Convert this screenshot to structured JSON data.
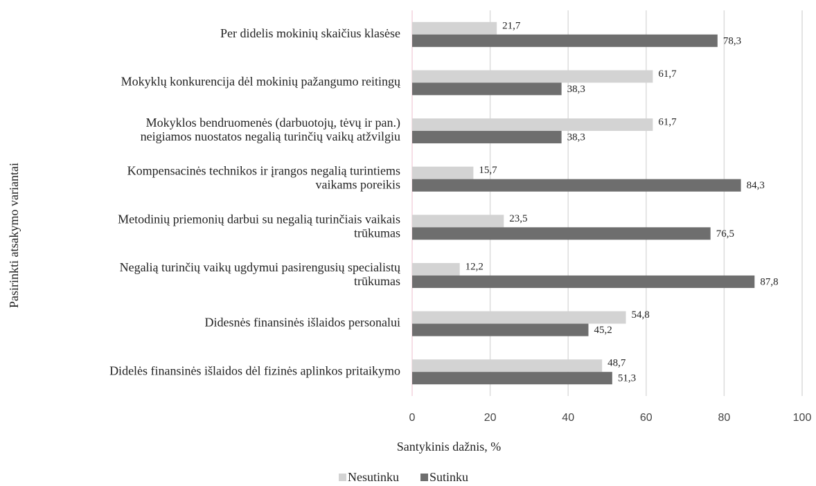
{
  "chart_data": {
    "type": "hbar",
    "xlabel": "Santykinis dažnis, %",
    "ylabel": "Pasirinkti atsakymo variantai",
    "categories": [
      "Per didelis mokinių skaičius klasėse",
      "Mokyklų konkurencija dėl mokinių pažangumo reitingų",
      "Mokyklos bendruomenės (darbuotojų, tėvų ir pan.)\nneigiamos nuostatos negalią turinčių vaikų atžvilgiu",
      "Kompensacinės technikos ir įrangos negalią turintiems\nvaikams poreikis",
      "Metodinių priemonių darbui su negalią turinčiais vaikais\ntrūkumas",
      "Negalią turinčių vaikų ugdymui pasirengusių specialistų\ntrūkumas",
      "Didesnės finansinės išlaidos personalui",
      "Didelės finansinės išlaidos dėl fizinės aplinkos pritaikymo"
    ],
    "series": [
      {
        "name": "Nesutinku",
        "color": "#d3d3d3",
        "values": [
          21.7,
          61.7,
          61.7,
          15.7,
          23.5,
          12.2,
          54.8,
          48.7
        ],
        "value_labels": [
          "21,7",
          "61,7",
          "61,7",
          "15,7",
          "23,5",
          "12,2",
          "54,8",
          "48,7"
        ]
      },
      {
        "name": "Sutinku",
        "color": "#6e6e6e",
        "values": [
          78.3,
          38.3,
          38.3,
          84.3,
          76.5,
          87.8,
          45.2,
          51.3
        ],
        "value_labels": [
          "78,3",
          "38,3",
          "38,3",
          "84,3",
          "76,5",
          "87,8",
          "45,2",
          "51,3"
        ]
      }
    ],
    "xlim": [
      0,
      100
    ],
    "xticks": [
      0,
      20,
      40,
      60,
      80,
      100
    ],
    "grid": true,
    "legend": "bottom"
  }
}
